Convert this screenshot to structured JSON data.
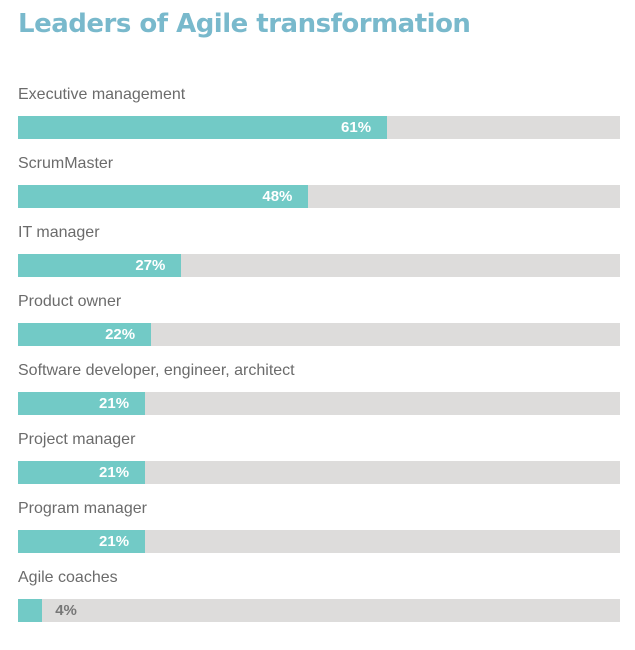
{
  "chart_data": {
    "type": "bar",
    "orientation": "horizontal",
    "title": "Leaders of Agile transformation",
    "categories": [
      "Executive management",
      "ScrumMaster",
      "IT manager",
      "Product owner",
      "Software developer, engineer, architect",
      "Project manager",
      "Program manager",
      "Agile coaches"
    ],
    "values": [
      61,
      48,
      27,
      22,
      21,
      21,
      21,
      4
    ],
    "value_labels": [
      "61%",
      "48%",
      "27%",
      "22%",
      "21%",
      "21%",
      "21%",
      "4%"
    ],
    "xlim": [
      0,
      100
    ],
    "grid": false,
    "legend": "none",
    "colors": {
      "title": "#79b9cc",
      "bar": "#72cac6",
      "track": "#dddcdb",
      "label": "#6b6b6b",
      "value_inside": "#ffffff",
      "value_outside": "#777777"
    }
  }
}
